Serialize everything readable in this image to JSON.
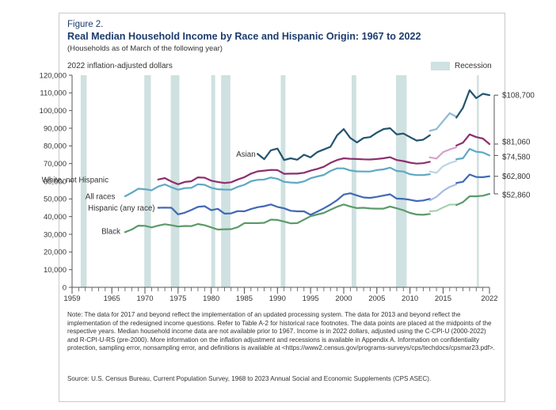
{
  "figure_label": "Figure 2.",
  "title": "Real Median Household Income by Race and Hispanic Origin: 1967 to 2022",
  "subtitle": "(Households as of March of the following year)",
  "legend": {
    "recession_label": "Recession"
  },
  "note": "Note: The data for 2017 and beyond reflect the implementation of an updated processing system. The data for 2013 and beyond reflect the implementation of the redesigned income questions. Refer to Table A-2 for historical race footnotes. The data points are placed at the midpoints of the respective years. Median household income data are not available prior to 1967. Income is in 2022 dollars, adjusted using the C-CPI-U (2000-2022) and R-CPI-U-RS (pre-2000). More information on the inflation adjustment and recessions is available in Appendix A. Information on confidentiality protection, sampling error, nonsampling error, and definitions is available at <https://www2.census.gov/programs-surveys/cps/techdocs/cpsmar23.pdf>.",
  "source": "Source: U.S. Census Bureau, Current Population Survey, 1968 to 2023 Annual Social and Economic Supplements (CPS ASEC).",
  "chart_data": {
    "type": "line",
    "title": "Real Median Household Income by Race and Hispanic Origin: 1967 to 2022",
    "subtitle": "(Households as of March of the following year)",
    "ylabel": "2022 inflation-adjusted dollars",
    "xlim": [
      1959,
      2022
    ],
    "ylim": [
      0,
      120000
    ],
    "x_ticks": [
      1959,
      1965,
      1970,
      1975,
      1980,
      1985,
      1990,
      1995,
      2000,
      2005,
      2010,
      2015,
      2022
    ],
    "y_ticks": [
      {
        "value": 0,
        "label": "0"
      },
      {
        "value": 10000,
        "label": "10,000"
      },
      {
        "value": 20000,
        "label": "20,000"
      },
      {
        "value": 30000,
        "label": "30,000"
      },
      {
        "value": 40000,
        "label": "40,000"
      },
      {
        "value": 50000,
        "label": "50,000"
      },
      {
        "value": 60000,
        "label": "60,000"
      },
      {
        "value": 70000,
        "label": "70,000"
      },
      {
        "value": 80000,
        "label": "80,000"
      },
      {
        "value": 90000,
        "label": "90,000"
      },
      {
        "value": 100000,
        "label": "100,000"
      },
      {
        "value": 110000,
        "label": "110,000"
      },
      {
        "value": 120000,
        "label": "120,000"
      }
    ],
    "grid": false,
    "recessions": [
      [
        1960.3,
        1961.2
      ],
      [
        1969.9,
        1970.9
      ],
      [
        1973.9,
        1975.2
      ],
      [
        1980.0,
        1980.6
      ],
      [
        1981.5,
        1982.9
      ],
      [
        1990.5,
        1991.2
      ],
      [
        2001.2,
        2001.9
      ],
      [
        2007.9,
        2009.5
      ],
      [
        2020.1,
        2020.4
      ]
    ],
    "series": [
      {
        "name": "Asian",
        "label_year": 1986.7,
        "label_value": 75500,
        "label_anchor": "end",
        "color": "#23546e",
        "light_color": "#8fbad4",
        "end_label": "$108,700",
        "end_label_value": 108700,
        "segments": [
          {
            "style": "normal",
            "x": [
              1987,
              1988,
              1989,
              1990,
              1991,
              1992,
              1993,
              1994,
              1995,
              1996,
              1997,
              1998,
              1999,
              2000,
              2001,
              2002,
              2003,
              2004,
              2005,
              2006,
              2007,
              2008,
              2009,
              2010,
              2011,
              2012,
              2013
            ],
            "y": [
              75500,
              72500,
              77500,
              78500,
              72000,
              73000,
              72200,
              75000,
              73500,
              76500,
              78000,
              79500,
              86000,
              89500,
              84500,
              82000,
              84500,
              85000,
              87500,
              89500,
              90000,
              86500,
              87000,
              85000,
              83000,
              83500,
              86000
            ]
          },
          {
            "style": "light",
            "x": [
              2013,
              2014,
              2015,
              2016,
              2017
            ],
            "y": [
              88500,
              89500,
              94000,
              98500,
              96500
            ]
          },
          {
            "style": "normal",
            "x": [
              2017,
              2018,
              2019,
              2020,
              2021,
              2022
            ],
            "y": [
              96000,
              101500,
              111500,
              107000,
              109500,
              108700
            ]
          }
        ]
      },
      {
        "name": "White, not Hispanic",
        "label_year": 1964.5,
        "label_value": 60800,
        "label_anchor": "end",
        "color": "#8d2f6d",
        "light_color": "#d7a2c6",
        "end_label": "$81,060",
        "end_label_value": 81060,
        "segments": [
          {
            "style": "normal",
            "x": [
              1972,
              1973,
              1974,
              1975,
              1976,
              1977,
              1978,
              1979,
              1980,
              1981,
              1982,
              1983,
              1984,
              1985,
              1986,
              1987,
              1988,
              1989,
              1990,
              1991,
              1992,
              1993,
              1994,
              1995,
              1996,
              1997,
              1998,
              1999,
              2000,
              2001,
              2002,
              2003,
              2004,
              2005,
              2006,
              2007,
              2008,
              2009,
              2010,
              2011,
              2012,
              2013
            ],
            "y": [
              61000,
              61800,
              59800,
              58300,
              59600,
              60000,
              62200,
              62000,
              60300,
              59600,
              59000,
              59400,
              61000,
              62300,
              64300,
              65600,
              66000,
              66400,
              66300,
              64200,
              64300,
              64300,
              64800,
              66000,
              67000,
              68200,
              70400,
              72000,
              73000,
              72700,
              72600,
              72400,
              72300,
              72600,
              73000,
              73600,
              72000,
              71400,
              70500,
              70000,
              70200,
              71000
            ]
          },
          {
            "style": "light",
            "x": [
              2013,
              2014,
              2015,
              2016,
              2017
            ],
            "y": [
              73500,
              72800,
              76500,
              78000,
              79200
            ]
          },
          {
            "style": "normal",
            "x": [
              2017,
              2018,
              2019,
              2020,
              2021,
              2022
            ],
            "y": [
              80200,
              81800,
              86500,
              85000,
              84200,
              81060
            ]
          }
        ]
      },
      {
        "name": "All races",
        "label_year": 1965.5,
        "label_value": 51500,
        "label_anchor": "end",
        "color": "#5fa8c6",
        "light_color": "#b6d7e6",
        "end_label": "$74,580",
        "end_label_value": 74580,
        "segments": [
          {
            "style": "normal",
            "x": [
              1967,
              1968,
              1969,
              1970,
              1971,
              1972,
              1973,
              1974,
              1975,
              1976,
              1977,
              1978,
              1979,
              1980,
              1981,
              1982,
              1983,
              1984,
              1985,
              1986,
              1987,
              1988,
              1989,
              1990,
              1991,
              1992,
              1993,
              1994,
              1995,
              1996,
              1997,
              1998,
              1999,
              2000,
              2001,
              2002,
              2003,
              2004,
              2005,
              2006,
              2007,
              2008,
              2009,
              2010,
              2011,
              2012,
              2013
            ],
            "y": [
              51500,
              53500,
              55800,
              55500,
              54900,
              57000,
              58200,
              56600,
              55200,
              56100,
              56300,
              58300,
              58000,
              56300,
              55500,
              55300,
              55200,
              56800,
              58000,
              60000,
              60800,
              61000,
              62100,
              61400,
              59700,
              59300,
              59100,
              59900,
              61700,
              62700,
              63600,
              65800,
              67300,
              67300,
              66100,
              65600,
              65500,
              65500,
              66300,
              66700,
              67700,
              65800,
              65500,
              64000,
              63500,
              63500,
              64000
            ]
          },
          {
            "style": "light",
            "x": [
              2013,
              2014,
              2015,
              2016,
              2017
            ],
            "y": [
              65500,
              64800,
              68500,
              70300,
              71500
            ]
          },
          {
            "style": "normal",
            "x": [
              2017,
              2018,
              2019,
              2020,
              2021,
              2022
            ],
            "y": [
              72500,
              73000,
              78300,
              76700,
              76300,
              74580
            ]
          }
        ]
      },
      {
        "name": "Hispanic (any race)",
        "label_year": 1971.5,
        "label_value": 45000,
        "label_anchor": "end",
        "color": "#4069b6",
        "light_color": "#a7bbe3",
        "end_label": "$62,800",
        "end_label_value": 62800,
        "segments": [
          {
            "style": "normal",
            "x": [
              1972,
              1973,
              1974,
              1975,
              1976,
              1977,
              1978,
              1979,
              1980,
              1981,
              1982,
              1983,
              1984,
              1985,
              1986,
              1987,
              1988,
              1989,
              1990,
              1991,
              1992,
              1993,
              1994,
              1995,
              1996,
              1997,
              1998,
              1999,
              2000,
              2001,
              2002,
              2003,
              2004,
              2005,
              2006,
              2007,
              2008,
              2009,
              2010,
              2011,
              2012,
              2013
            ],
            "y": [
              45000,
              45100,
              45000,
              41300,
              42200,
              43800,
              45500,
              45900,
              43600,
              44400,
              41700,
              41800,
              43100,
              43000,
              44300,
              45300,
              45900,
              46900,
              45500,
              44700,
              43300,
              43000,
              43000,
              41000,
              42800,
              44700,
              46800,
              49300,
              52500,
              53200,
              52000,
              50800,
              50600,
              51200,
              51900,
              52600,
              50200,
              50000,
              49500,
              48800,
              49100,
              50000
            ]
          },
          {
            "style": "light",
            "x": [
              2013,
              2014,
              2015,
              2016,
              2017
            ],
            "y": [
              49200,
              51200,
              54500,
              56800,
              58200
            ]
          },
          {
            "style": "normal",
            "x": [
              2017,
              2018,
              2019,
              2020,
              2021,
              2022
            ],
            "y": [
              59000,
              59700,
              63800,
              62400,
              62300,
              62800
            ]
          }
        ]
      },
      {
        "name": "Black",
        "label_year": 1966.3,
        "label_value": 31700,
        "label_anchor": "end",
        "color": "#5b9a6a",
        "light_color": "#a8d0b0",
        "end_label": "$52,860",
        "end_label_value": 52860,
        "segments": [
          {
            "style": "normal",
            "x": [
              1967,
              1968,
              1969,
              1970,
              1971,
              1972,
              1973,
              1974,
              1975,
              1976,
              1977,
              1978,
              1979,
              1980,
              1981,
              1982,
              1983,
              1984,
              1985,
              1986,
              1987,
              1988,
              1989,
              1990,
              1991,
              1992,
              1993,
              1994,
              1995,
              1996,
              1997,
              1998,
              1999,
              2000,
              2001,
              2002,
              2003,
              2004,
              2005,
              2006,
              2007,
              2008,
              2009,
              2010,
              2011,
              2012,
              2013
            ],
            "y": [
              31200,
              32700,
              34900,
              34800,
              33900,
              34900,
              35700,
              35100,
              34400,
              34700,
              34600,
              35800,
              35100,
              33900,
              32700,
              32800,
              32900,
              34000,
              36300,
              36300,
              36300,
              36500,
              38300,
              38100,
              37200,
              36200,
              36300,
              38300,
              40200,
              41200,
              42100,
              43900,
              45600,
              46900,
              45700,
              44800,
              45000,
              44600,
              44500,
              44500,
              45700,
              44700,
              43600,
              42100,
              41200,
              41000,
              41500
            ]
          },
          {
            "style": "light",
            "x": [
              2013,
              2014,
              2015,
              2016,
              2017
            ],
            "y": [
              43000,
              43300,
              45200,
              46800,
              46900
            ]
          },
          {
            "style": "normal",
            "x": [
              2017,
              2018,
              2019,
              2020,
              2021,
              2022
            ],
            "y": [
              46500,
              48200,
              51500,
              51500,
              51800,
              52860
            ]
          }
        ]
      }
    ]
  }
}
